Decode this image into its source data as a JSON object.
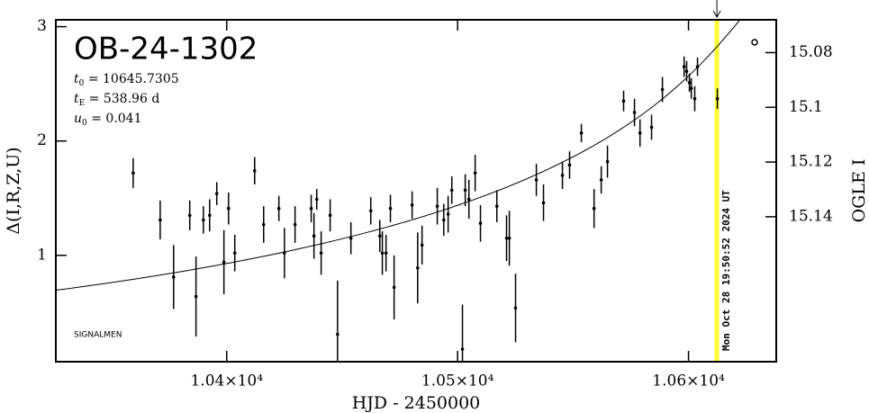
{
  "chart_data": {
    "type": "scatter",
    "title": "OB-24-1302",
    "parameters": [
      {
        "name": "t",
        "sub": "0",
        "value": 10645.7305
      },
      {
        "name": "t",
        "sub": "E",
        "value": 538.96,
        "unit": "d"
      },
      {
        "name": "u",
        "sub": "0",
        "value": 0.041
      }
    ],
    "note": "SIGNALMEN",
    "x_label": "HJD - 2450000",
    "y_label": "Δ(I,R,Z,U)",
    "y2_label": "OGLE I",
    "xlim": [
      10326,
      10638
    ],
    "ylim": [
      0.07,
      3.06
    ],
    "y2lim": [
      15.068,
      15.193
    ],
    "xticks": [
      {
        "value": 10400,
        "label": "1.04×10⁴"
      },
      {
        "value": 10500,
        "label": "1.05×10⁴"
      },
      {
        "value": 10600,
        "label": "1.06×10⁴"
      }
    ],
    "yticks": [
      1,
      2,
      3
    ],
    "y2ticks": [
      15.08,
      15.1,
      15.12,
      15.14
    ],
    "color": "#000000",
    "model_color": "#000000",
    "now_line": {
      "x": 10612.3,
      "label": "Mon Oct 28 19:50:52 2024 UT",
      "color": "#ffff33",
      "text_color": "#999999"
    },
    "series": [
      {
        "name": "data",
        "x": [
          10359.5,
          10371.2,
          10377.0,
          10384.0,
          10386.7,
          10389.9,
          10392.6,
          10395.7,
          10398.8,
          10400.8,
          10403.5,
          10412.1,
          10416.0,
          10422.6,
          10425.0,
          10429.6,
          10436.6,
          10437.8,
          10439.0,
          10440.9,
          10444.8,
          10448.0,
          10453.8,
          10462.4,
          10466.3,
          10467.4,
          10469.0,
          10470.9,
          10472.5,
          10480.3,
          10482.7,
          10484.6,
          10491.2,
          10494.0,
          10495.9,
          10497.5,
          10502.1,
          10503.3,
          10504.9,
          10507.6,
          10509.9,
          10517.0,
          10521.2,
          10522.4,
          10525.1,
          10534.1,
          10537.2,
          10545.4,
          10548.5,
          10553.6,
          10559.1,
          10562.2,
          10564.9,
          10571.9,
          10576.6,
          10579.0,
          10584.0,
          10588.7,
          10598.1,
          10599.2,
          10600.4,
          10601.2,
          10602.7,
          10603.9,
          10612.5
        ],
        "values": [
          1.72,
          1.31,
          0.81,
          1.35,
          0.64,
          1.31,
          1.35,
          1.54,
          0.94,
          1.41,
          1.02,
          1.74,
          1.27,
          1.41,
          1.02,
          1.27,
          1.41,
          1.17,
          1.49,
          1.02,
          1.35,
          0.31,
          1.15,
          1.39,
          1.17,
          1.02,
          1.02,
          1.41,
          0.72,
          1.44,
          0.89,
          1.09,
          1.43,
          1.31,
          1.36,
          1.57,
          0.18,
          1.57,
          1.49,
          1.72,
          1.28,
          1.43,
          1.15,
          1.15,
          0.54,
          1.66,
          1.46,
          1.7,
          1.79,
          2.07,
          1.41,
          1.66,
          1.82,
          2.35,
          2.25,
          2.07,
          2.12,
          2.45,
          2.65,
          2.61,
          2.51,
          2.46,
          2.37,
          2.65,
          2.37
        ],
        "errors": [
          0.13,
          0.17,
          0.28,
          0.13,
          0.35,
          0.12,
          0.14,
          0.1,
          0.28,
          0.14,
          0.16,
          0.12,
          0.16,
          0.11,
          0.22,
          0.16,
          0.12,
          0.2,
          0.09,
          0.19,
          0.14,
          0.47,
          0.14,
          0.12,
          0.14,
          0.19,
          0.16,
          0.12,
          0.28,
          0.12,
          0.31,
          0.17,
          0.16,
          0.14,
          0.16,
          0.12,
          0.39,
          0.14,
          0.17,
          0.16,
          0.16,
          0.14,
          0.2,
          0.24,
          0.3,
          0.14,
          0.16,
          0.12,
          0.12,
          0.08,
          0.17,
          0.12,
          0.14,
          0.09,
          0.12,
          0.12,
          0.11,
          0.11,
          0.09,
          0.09,
          0.08,
          0.09,
          0.11,
          0.08,
          0.09
        ]
      }
    ]
  }
}
